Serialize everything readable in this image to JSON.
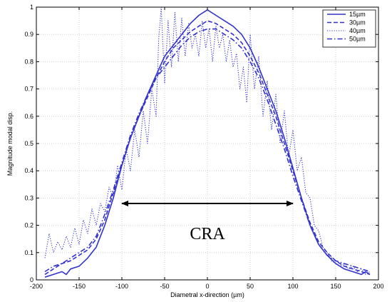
{
  "chart_data": {
    "type": "line",
    "title": "",
    "xlabel": "Diametral x-direction (µm)",
    "ylabel": "Magnitude modal disp.",
    "xlim": [
      -200,
      200
    ],
    "ylim": [
      0,
      1
    ],
    "xticks": [
      "-200",
      "-150",
      "-100",
      "-50",
      "0",
      "50",
      "100",
      "150",
      "200"
    ],
    "yticks": [
      "0",
      "0.1",
      "0.2",
      "0.3",
      "0.4",
      "0.5",
      "0.6",
      "0.7",
      "0.8",
      "0.9",
      "1"
    ],
    "grid": true,
    "legend_position": "top-right",
    "color": "#3333cc",
    "series": [
      {
        "name": "15µm",
        "style": "solid",
        "x": [
          -190,
          -180,
          -170,
          -165,
          -160,
          -150,
          -140,
          -130,
          -120,
          -110,
          -100,
          -90,
          -80,
          -70,
          -60,
          -50,
          -40,
          -30,
          -20,
          -10,
          0,
          10,
          20,
          30,
          40,
          50,
          60,
          70,
          80,
          90,
          100,
          110,
          120,
          130,
          140,
          150,
          160,
          170,
          180,
          185,
          190
        ],
        "y": [
          0.01,
          0.02,
          0.03,
          0.02,
          0.04,
          0.05,
          0.08,
          0.12,
          0.2,
          0.3,
          0.42,
          0.52,
          0.6,
          0.68,
          0.75,
          0.82,
          0.86,
          0.9,
          0.94,
          0.97,
          0.99,
          0.97,
          0.95,
          0.93,
          0.9,
          0.85,
          0.78,
          0.7,
          0.62,
          0.52,
          0.41,
          0.3,
          0.2,
          0.13,
          0.09,
          0.06,
          0.04,
          0.03,
          0.02,
          0.03,
          0.02
        ]
      },
      {
        "name": "30µm",
        "style": "dashed",
        "x": [
          -190,
          -180,
          -170,
          -160,
          -150,
          -140,
          -130,
          -120,
          -110,
          -100,
          -90,
          -80,
          -70,
          -60,
          -50,
          -40,
          -30,
          -20,
          -10,
          0,
          10,
          20,
          30,
          40,
          50,
          60,
          70,
          80,
          90,
          100,
          110,
          120,
          130,
          140,
          150,
          160,
          170,
          180,
          190
        ],
        "y": [
          0.02,
          0.04,
          0.06,
          0.07,
          0.09,
          0.11,
          0.15,
          0.22,
          0.32,
          0.42,
          0.52,
          0.6,
          0.67,
          0.74,
          0.8,
          0.85,
          0.88,
          0.91,
          0.93,
          0.95,
          0.94,
          0.92,
          0.9,
          0.87,
          0.82,
          0.76,
          0.68,
          0.6,
          0.5,
          0.4,
          0.3,
          0.21,
          0.14,
          0.1,
          0.07,
          0.05,
          0.04,
          0.03,
          0.02
        ]
      },
      {
        "name": "40µm",
        "style": "dotted",
        "x": [
          -190,
          -185,
          -180,
          -175,
          -170,
          -165,
          -160,
          -155,
          -150,
          -145,
          -140,
          -135,
          -130,
          -125,
          -120,
          -115,
          -110,
          -105,
          -100,
          -95,
          -90,
          -85,
          -80,
          -75,
          -70,
          -65,
          -60,
          -57,
          -54,
          -50,
          -46,
          -42,
          -38,
          -34,
          -30,
          -26,
          -22,
          -18,
          -14,
          -10,
          -6,
          -2,
          2,
          6,
          10,
          14,
          18,
          22,
          26,
          30,
          34,
          38,
          42,
          46,
          50,
          55,
          60,
          65,
          70,
          75,
          80,
          85,
          90,
          95,
          100,
          105,
          110,
          115,
          120,
          125,
          130,
          135,
          140,
          145,
          150,
          155,
          160,
          165,
          170,
          175,
          180,
          185,
          190
        ],
        "y": [
          0.08,
          0.17,
          0.1,
          0.14,
          0.11,
          0.16,
          0.12,
          0.19,
          0.13,
          0.22,
          0.17,
          0.26,
          0.2,
          0.28,
          0.25,
          0.34,
          0.3,
          0.42,
          0.33,
          0.48,
          0.4,
          0.55,
          0.45,
          0.62,
          0.5,
          0.7,
          0.6,
          0.88,
          1.0,
          0.72,
          0.95,
          0.78,
          0.98,
          0.8,
          0.96,
          0.82,
          0.94,
          0.85,
          0.9,
          0.82,
          0.95,
          0.85,
          0.92,
          0.8,
          0.93,
          0.85,
          0.9,
          0.8,
          0.88,
          0.78,
          0.83,
          0.7,
          0.78,
          0.65,
          0.9,
          0.7,
          0.82,
          0.6,
          0.73,
          0.55,
          0.68,
          0.5,
          0.62,
          0.45,
          0.55,
          0.4,
          0.45,
          0.32,
          0.3,
          0.2,
          0.18,
          0.12,
          0.1,
          0.07,
          0.06,
          0.05,
          0.06,
          0.04,
          0.05,
          0.03,
          0.04,
          0.02,
          0.03
        ]
      },
      {
        "name": "50µm",
        "style": "dashdot",
        "x": [
          -190,
          -180,
          -170,
          -160,
          -150,
          -140,
          -130,
          -120,
          -110,
          -100,
          -90,
          -80,
          -70,
          -60,
          -50,
          -40,
          -30,
          -20,
          -10,
          0,
          10,
          20,
          30,
          40,
          50,
          60,
          70,
          80,
          90,
          100,
          110,
          120,
          130,
          140,
          150,
          160,
          170,
          180,
          190
        ],
        "y": [
          0.03,
          0.05,
          0.06,
          0.08,
          0.1,
          0.12,
          0.16,
          0.24,
          0.33,
          0.43,
          0.53,
          0.61,
          0.68,
          0.74,
          0.78,
          0.82,
          0.86,
          0.89,
          0.91,
          0.92,
          0.92,
          0.9,
          0.88,
          0.85,
          0.8,
          0.74,
          0.66,
          0.57,
          0.48,
          0.38,
          0.29,
          0.2,
          0.13,
          0.09,
          0.07,
          0.06,
          0.05,
          0.04,
          0.03
        ]
      }
    ],
    "annotations": [
      {
        "text": "CRA",
        "x": 0,
        "y": 0.17,
        "arrow_from": -100,
        "arrow_to": 100,
        "arrow_y": 0.28
      }
    ]
  }
}
